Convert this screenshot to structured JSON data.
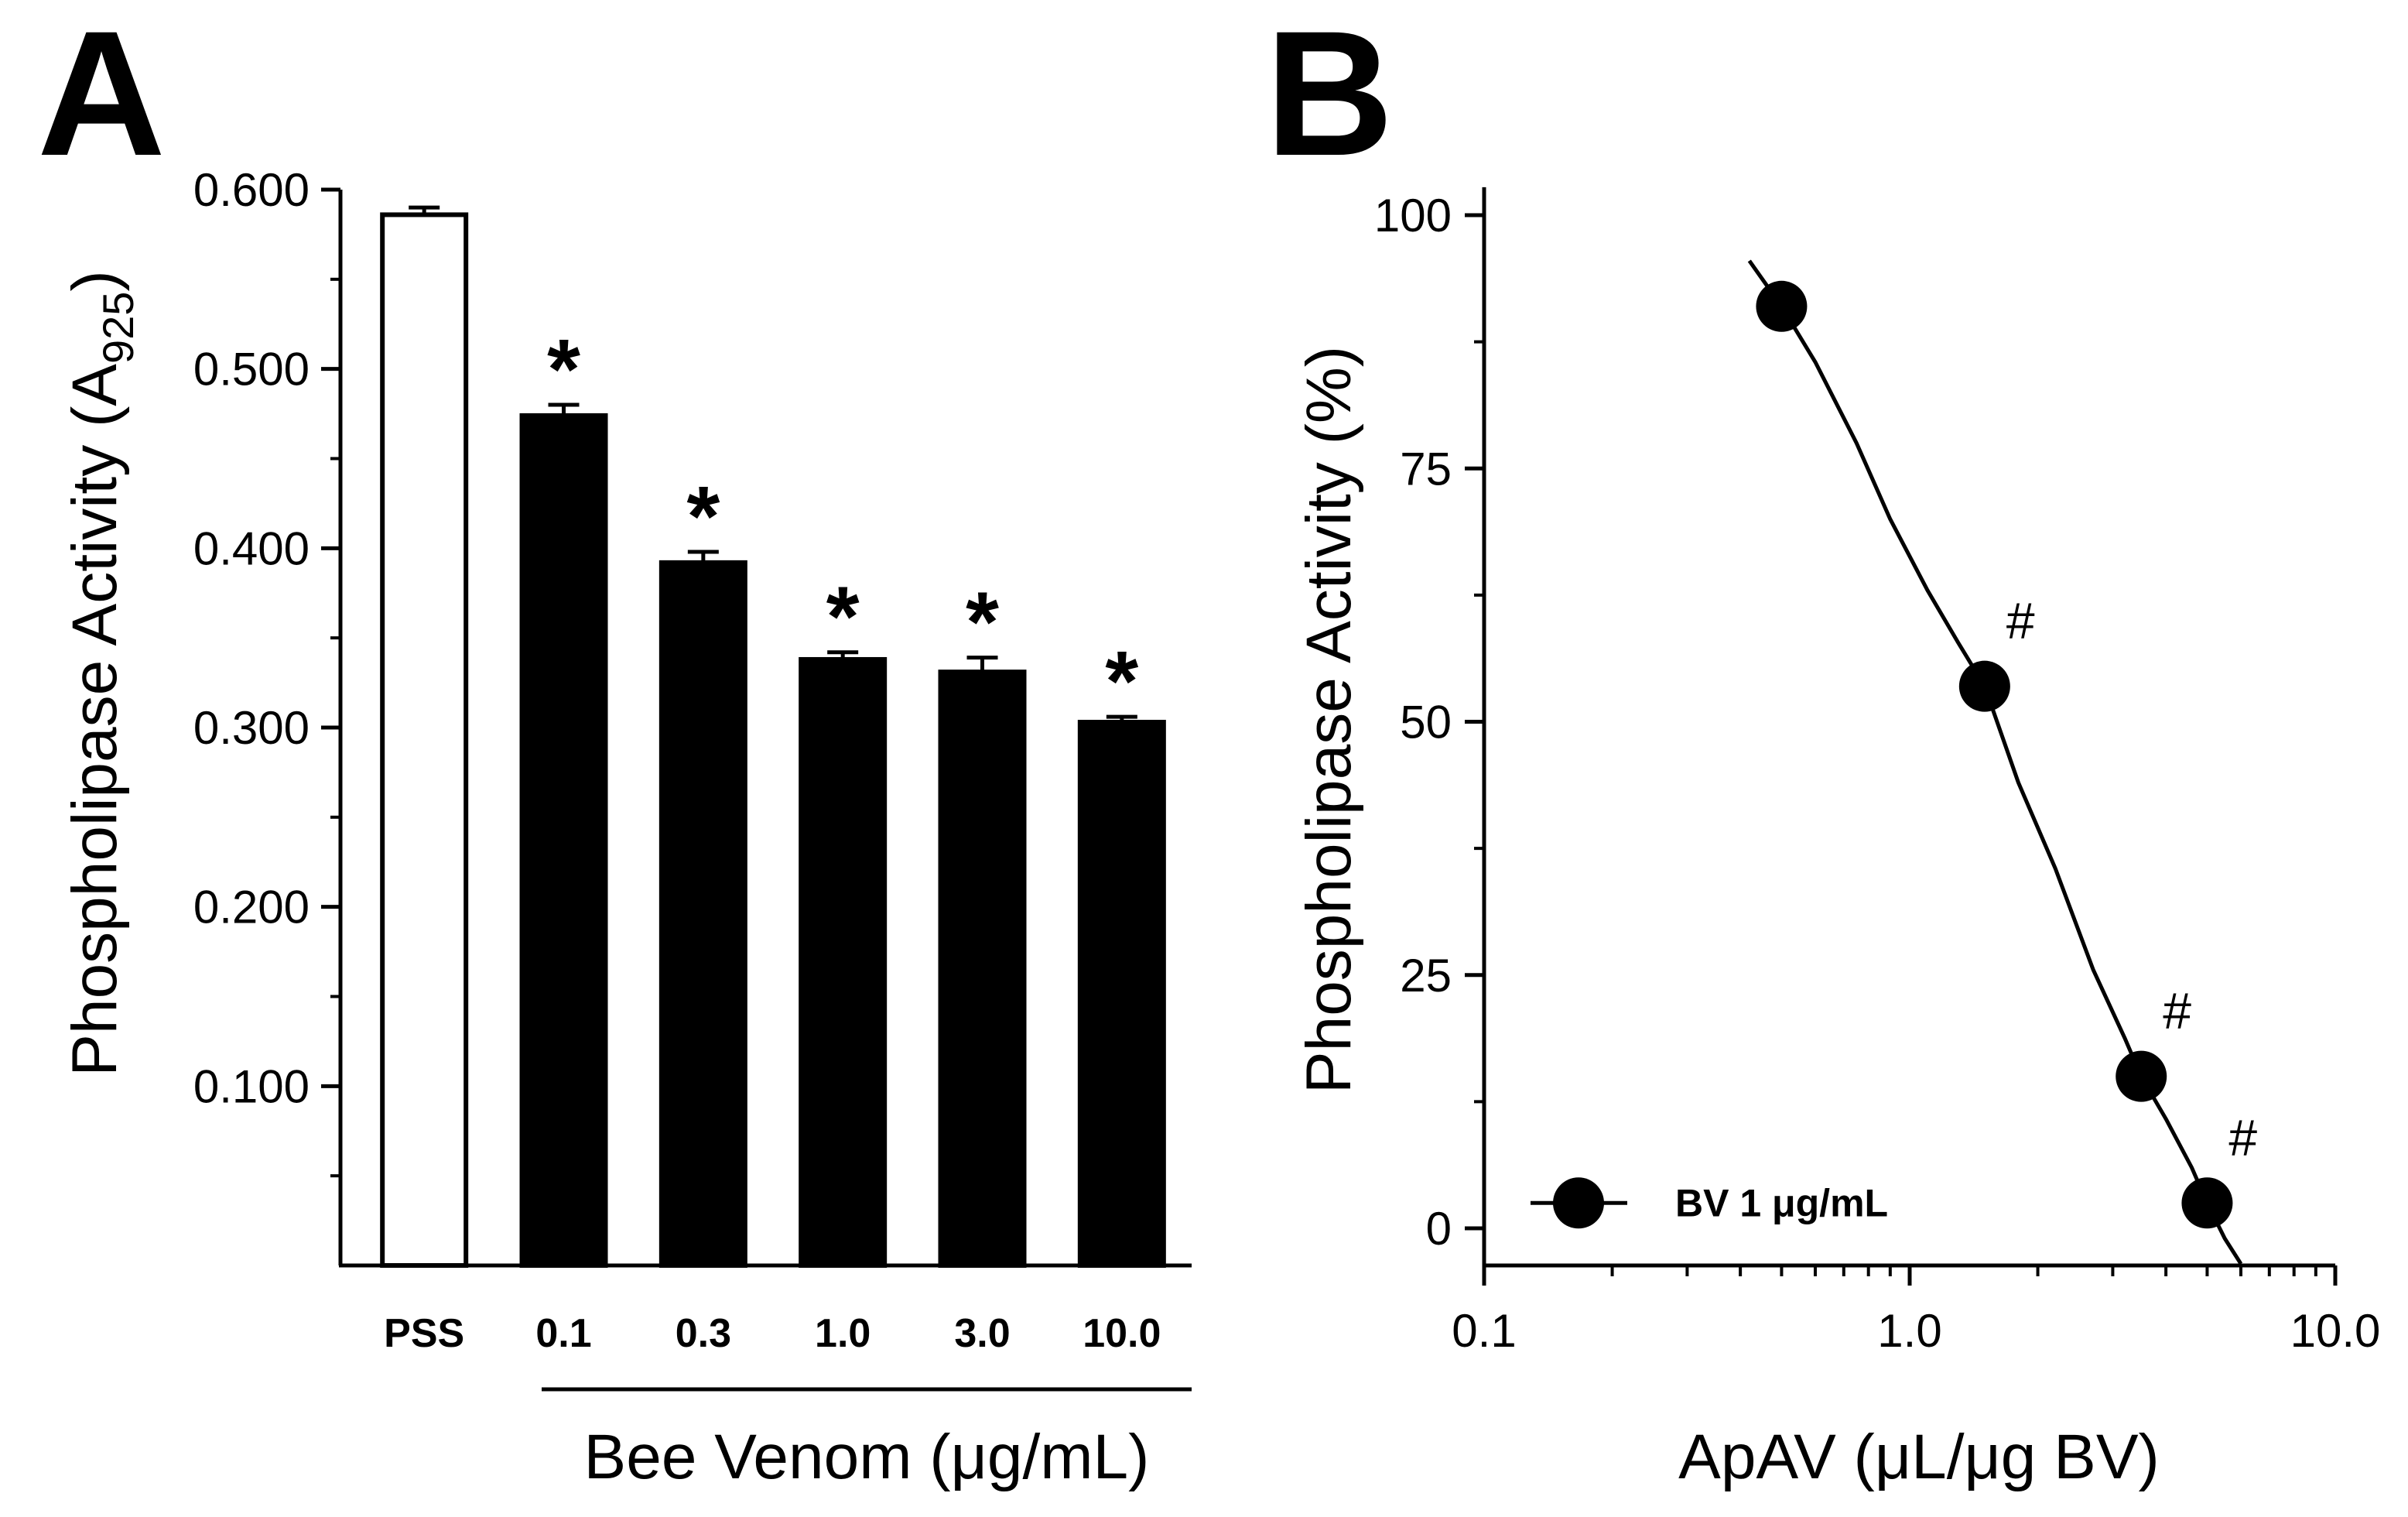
{
  "chart_data": [
    {
      "panel": "A",
      "type": "bar",
      "ylabel_main": "Phospholipase Activity (A",
      "ylabel_sub": "925",
      "ylabel_close": ")",
      "xlabel": "Bee Venom (μg/mL)",
      "ylim": [
        0,
        0.6
      ],
      "yticks": [
        0.1,
        0.2,
        0.3,
        0.4,
        0.5,
        0.6
      ],
      "ytick_labels": [
        "0.100",
        "0.200",
        "0.300",
        "0.400",
        "0.500",
        "0.600"
      ],
      "categories": [
        "PSS",
        "0.1",
        "0.3",
        "1.0",
        "3.0",
        "10.0"
      ],
      "values": [
        0.586,
        0.474,
        0.392,
        0.338,
        0.331,
        0.303
      ],
      "errors": [
        0.004,
        0.006,
        0.006,
        0.004,
        0.008,
        0.003
      ],
      "fill": [
        "#ffffff",
        "#000000",
        "#000000",
        "#000000",
        "#000000",
        "#000000"
      ],
      "significance": [
        "",
        "*",
        "*",
        "*",
        "*",
        "*"
      ]
    },
    {
      "panel": "B",
      "type": "scatter",
      "xlabel": "ApAV (μL/μg BV)",
      "ylabel": "Phospholipase Activity (%)",
      "xscale": "log",
      "xlim": [
        0.1,
        10
      ],
      "ylim": [
        -5,
        100
      ],
      "xticks": [
        0.1,
        1.0,
        10.0
      ],
      "xtick_labels": [
        "0.1",
        "1.0",
        "10.0"
      ],
      "yticks": [
        0,
        25,
        50,
        75,
        100
      ],
      "ytick_labels": [
        "0",
        "25",
        "50",
        "75",
        "100"
      ],
      "series": [
        {
          "name": "BV 1 μg/mL",
          "x": [
            0.5,
            1.5,
            3.5,
            5.0
          ],
          "y": [
            91.0,
            53.5,
            15.0,
            2.5
          ],
          "significance": [
            "",
            "#",
            "#",
            "#"
          ]
        }
      ],
      "fit_curve": {
        "x": [
          0.42,
          0.5,
          0.6,
          0.75,
          0.9,
          1.1,
          1.3,
          1.5,
          1.8,
          2.2,
          2.7,
          3.2,
          3.5,
          4.0,
          4.6,
          5.0,
          5.5,
          6.0
        ],
        "y": [
          95.5,
          91.0,
          85.5,
          77.5,
          70.0,
          63.0,
          57.8,
          53.5,
          44.0,
          35.5,
          25.5,
          18.8,
          15.0,
          10.8,
          6.0,
          2.5,
          -1.0,
          -3.5
        ]
      },
      "legend_position": "bottom-left"
    }
  ]
}
